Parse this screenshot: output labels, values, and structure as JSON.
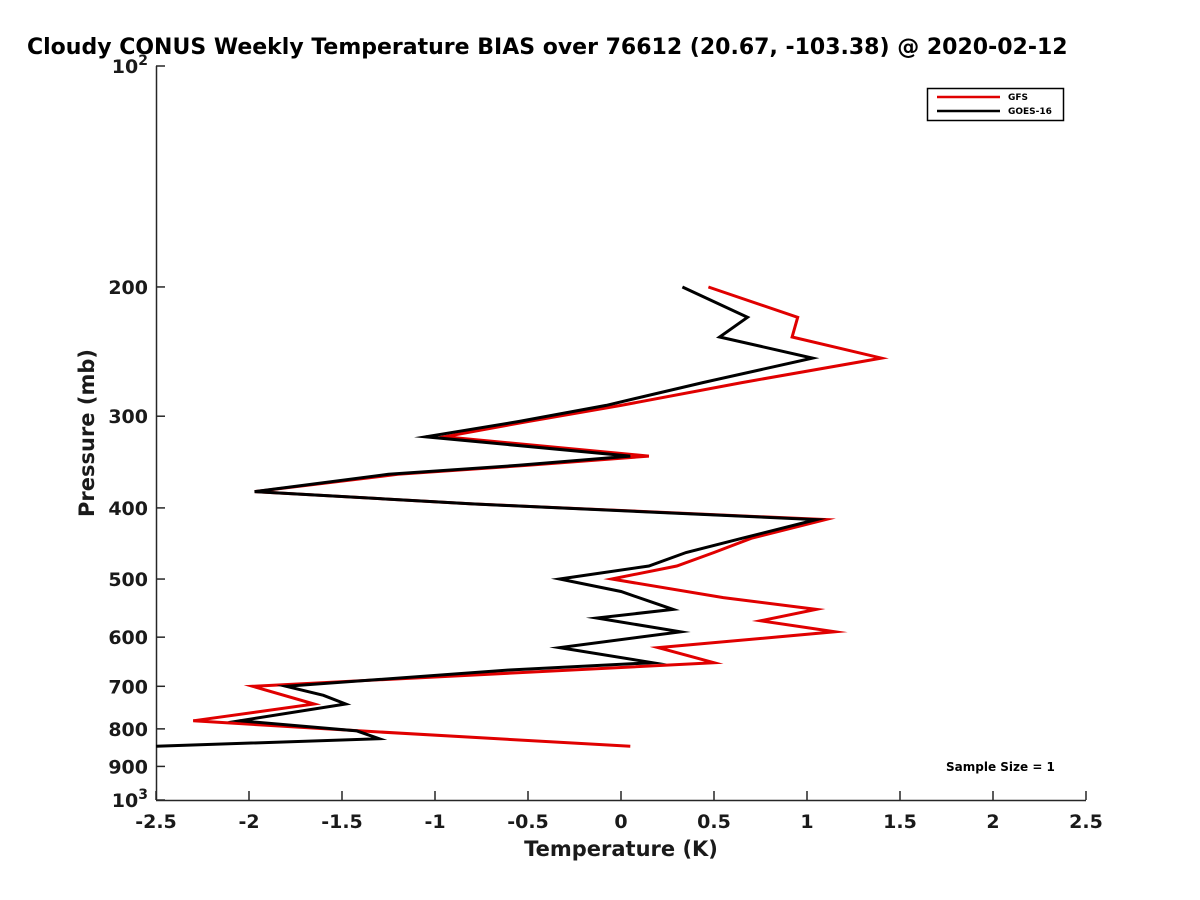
{
  "chart_data": {
    "type": "line",
    "title": "Cloudy CONUS Weekly Temperature BIAS over 76612 (20.67, -103.38) @ 2020-02-12",
    "xlabel": "Temperature (K)",
    "ylabel": "Pressure (mb)",
    "xlim": [
      -2.5,
      2.5
    ],
    "ylim": [
      100,
      1000
    ],
    "y_scale": "log",
    "y_reversed": true,
    "grid": false,
    "legend_position": "top-right",
    "x_ticks": [
      "-2.5",
      "-2",
      "-1.5",
      "-1",
      "-0.5",
      "0",
      "0.5",
      "1",
      "1.5",
      "2",
      "2.5"
    ],
    "x_tick_values": [
      -2.5,
      -2,
      -1.5,
      -1,
      -0.5,
      0,
      0.5,
      1,
      1.5,
      2,
      2.5
    ],
    "y_ticks": [
      {
        "value": 100,
        "base": "10",
        "exp": "2"
      },
      {
        "value": 200,
        "label": "200"
      },
      {
        "value": 300,
        "label": "300"
      },
      {
        "value": 400,
        "label": "400"
      },
      {
        "value": 500,
        "label": "500"
      },
      {
        "value": 600,
        "label": "600"
      },
      {
        "value": 700,
        "label": "700"
      },
      {
        "value": 800,
        "label": "800"
      },
      {
        "value": 900,
        "label": "900"
      },
      {
        "value": 1000,
        "base": "10",
        "exp": "3"
      }
    ],
    "annotation": "Sample Size = 1",
    "series": [
      {
        "name": "GFS",
        "color": "#e00000",
        "points": [
          [
            0.47,
            200
          ],
          [
            0.95,
            220
          ],
          [
            0.92,
            234
          ],
          [
            1.4,
            250
          ],
          [
            0.65,
            270
          ],
          [
            0.0,
            290
          ],
          [
            -0.5,
            305
          ],
          [
            -0.95,
            320
          ],
          [
            0.15,
            340
          ],
          [
            -0.5,
            350
          ],
          [
            -1.2,
            360
          ],
          [
            -1.97,
            380
          ],
          [
            -0.8,
            395
          ],
          [
            1.1,
            415
          ],
          [
            0.7,
            440
          ],
          [
            0.5,
            460
          ],
          [
            0.3,
            480
          ],
          [
            -0.05,
            500
          ],
          [
            0.55,
            530
          ],
          [
            1.05,
            550
          ],
          [
            0.75,
            570
          ],
          [
            1.15,
            590
          ],
          [
            0.2,
            620
          ],
          [
            0.5,
            650
          ],
          [
            -1.98,
            700
          ],
          [
            -1.65,
            740
          ],
          [
            -2.3,
            780
          ],
          [
            -1.4,
            805
          ],
          [
            0.05,
            845
          ]
        ]
      },
      {
        "name": "GOES-16",
        "color": "#000000",
        "points": [
          [
            0.33,
            200
          ],
          [
            0.68,
            220
          ],
          [
            0.53,
            234
          ],
          [
            1.03,
            250
          ],
          [
            0.44,
            270
          ],
          [
            -0.08,
            290
          ],
          [
            -0.55,
            305
          ],
          [
            -1.05,
            320
          ],
          [
            0.05,
            340
          ],
          [
            -0.55,
            350
          ],
          [
            -1.25,
            360
          ],
          [
            -1.97,
            380
          ],
          [
            -0.8,
            395
          ],
          [
            1.05,
            415
          ],
          [
            0.65,
            440
          ],
          [
            0.35,
            460
          ],
          [
            0.15,
            480
          ],
          [
            -0.33,
            500
          ],
          [
            0.0,
            520
          ],
          [
            0.28,
            550
          ],
          [
            -0.13,
            565
          ],
          [
            0.32,
            590
          ],
          [
            -0.33,
            620
          ],
          [
            0.17,
            650
          ],
          [
            -0.6,
            665
          ],
          [
            -1.8,
            700
          ],
          [
            -1.6,
            720
          ],
          [
            -1.48,
            740
          ],
          [
            -2.05,
            780
          ],
          [
            -1.42,
            805
          ],
          [
            -1.3,
            825
          ],
          [
            -2.5,
            845
          ]
        ]
      }
    ]
  }
}
